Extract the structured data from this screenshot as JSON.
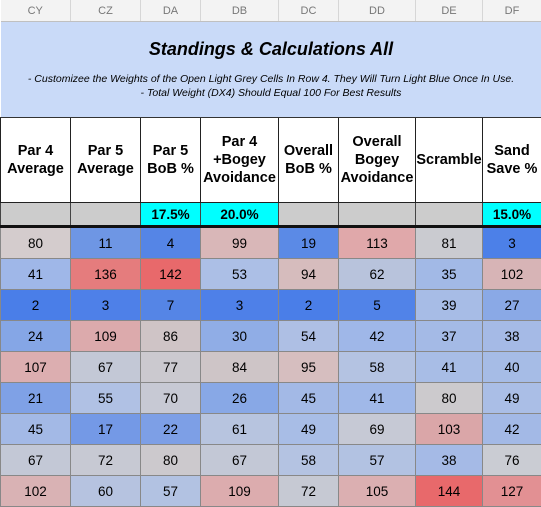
{
  "columns": [
    "CY",
    "CZ",
    "DA",
    "DB",
    "DC",
    "DD",
    "DE",
    "DF"
  ],
  "banner": {
    "title": "Standings & Calculations All",
    "notes": [
      "- Customizee the Weights of the Open Light Grey Cells In Row 4. They Will Turn Light Blue Once In Use.",
      "- Total Weight (DX4) Should Equal 100 For Best Results"
    ]
  },
  "headers": [
    "Par 4\nAverage",
    "Par 5\nAverage",
    "Par 5\nBoB %",
    "Par 4\n+Bogey\nAvoidance",
    "Overall\nBoB %",
    "Overall\nBogey\nAvoidance",
    "Scramble",
    "Sand\nSave %"
  ],
  "weights": [
    null,
    null,
    "17.5%",
    "20.0%",
    null,
    null,
    null,
    "15.0%"
  ],
  "rows": [
    [
      80,
      11,
      4,
      99,
      19,
      113,
      81,
      3
    ],
    [
      41,
      136,
      142,
      53,
      94,
      62,
      35,
      102
    ],
    [
      2,
      3,
      7,
      3,
      2,
      5,
      39,
      27
    ],
    [
      24,
      109,
      86,
      30,
      54,
      42,
      37,
      38
    ],
    [
      107,
      67,
      77,
      84,
      95,
      58,
      41,
      40
    ],
    [
      21,
      55,
      70,
      26,
      45,
      41,
      80,
      49
    ],
    [
      45,
      17,
      22,
      61,
      49,
      69,
      103,
      42
    ],
    [
      67,
      72,
      80,
      67,
      58,
      57,
      38,
      76
    ],
    [
      102,
      60,
      57,
      109,
      72,
      105,
      144,
      127
    ]
  ],
  "cell_colors": [
    [
      "#d4cccd",
      "#6e96e4",
      "#5585e6",
      "#d9b7b8",
      "#5b8ae6",
      "#e0a8aa",
      "#cacbd0",
      "#4c80e8"
    ],
    [
      "#9fb7e8",
      "#e57c7d",
      "#e8696b",
      "#acbfe6",
      "#d6bcbd",
      "#b8c3dc",
      "#a2b9e6",
      "#d7b4b6"
    ],
    [
      "#4a7ee8",
      "#4e80e8",
      "#5585e6",
      "#4e80e8",
      "#4a7ee8",
      "#5183e8",
      "#a7bce6",
      "#8aa9e6"
    ],
    [
      "#85a6e6",
      "#dcaaac",
      "#cfc4c6",
      "#90ade6",
      "#aebfe4",
      "#9fb7e8",
      "#a4bae6",
      "#a5bae6"
    ],
    [
      "#dcaeb0",
      "#c3c8d6",
      "#cbc9cf",
      "#cec5c7",
      "#d6bebf",
      "#b4c3e2",
      "#a8bde6",
      "#a6bce6"
    ],
    [
      "#7fa1e6",
      "#b0c1e4",
      "#c7c9d4",
      "#88a8e6",
      "#a3b9e6",
      "#a0b8e8",
      "#cccacd",
      "#aabee6"
    ],
    [
      "#a3b9e6",
      "#7499e6",
      "#7d9fe6",
      "#b7c4df",
      "#a8bde6",
      "#c6c9d5",
      "#daa6a8",
      "#a3b9e6"
    ],
    [
      "#c3c8d6",
      "#c7c9d3",
      "#ccc9cd",
      "#c3c8d6",
      "#b4c3e2",
      "#b2c2e2",
      "#a5bae6",
      "#caccd3"
    ],
    [
      "#d9b2b4",
      "#b6c3e0",
      "#b2c2e2",
      "#dcacae",
      "#c6c9d3",
      "#dbafb1",
      "#e8696b",
      "#e29093"
    ]
  ]
}
